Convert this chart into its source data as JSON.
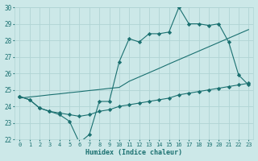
{
  "xlabel": "Humidex (Indice chaleur)",
  "xlim": [
    -0.5,
    23.5
  ],
  "ylim": [
    22,
    30
  ],
  "xticks": [
    0,
    1,
    2,
    3,
    4,
    5,
    6,
    7,
    8,
    9,
    10,
    11,
    12,
    13,
    14,
    15,
    16,
    17,
    18,
    19,
    20,
    21,
    22,
    23
  ],
  "yticks": [
    22,
    23,
    24,
    25,
    26,
    27,
    28,
    29,
    30
  ],
  "background_color": "#cce8e8",
  "grid_color": "#b0d4d4",
  "line_color": "#1a7070",
  "curve1_x": [
    0,
    1,
    2,
    3,
    4,
    5,
    6,
    7,
    8,
    9,
    10,
    11,
    12,
    13,
    14,
    15,
    16,
    17,
    18,
    19,
    20,
    21,
    22,
    23
  ],
  "curve1_y": [
    24.6,
    24.4,
    23.9,
    23.7,
    23.5,
    23.1,
    21.8,
    22.3,
    24.3,
    24.3,
    26.7,
    28.1,
    27.9,
    28.4,
    28.4,
    28.5,
    30.0,
    29.0,
    29.0,
    28.9,
    29.0,
    27.9,
    25.9,
    25.3
  ],
  "curve2_x": [
    0,
    1,
    2,
    3,
    4,
    5,
    6,
    7,
    8,
    9,
    10,
    11,
    12,
    13,
    14,
    15,
    16,
    17,
    18,
    19,
    20,
    21,
    22,
    23
  ],
  "curve2_y": [
    24.5,
    24.57,
    24.63,
    24.7,
    24.76,
    24.83,
    24.89,
    24.96,
    25.02,
    25.09,
    25.15,
    25.52,
    25.78,
    26.04,
    26.3,
    26.57,
    26.83,
    27.09,
    27.35,
    27.61,
    27.87,
    28.13,
    28.39,
    28.65
  ],
  "curve3_x": [
    0,
    1,
    2,
    3,
    4,
    5,
    6,
    7,
    8,
    9,
    10,
    11,
    12,
    13,
    14,
    15,
    16,
    17,
    18,
    19,
    20,
    21,
    22,
    23
  ],
  "curve3_y": [
    24.6,
    24.4,
    23.9,
    23.7,
    23.6,
    23.5,
    23.4,
    23.5,
    23.7,
    23.8,
    24.0,
    24.1,
    24.2,
    24.3,
    24.4,
    24.5,
    24.7,
    24.8,
    24.9,
    25.0,
    25.1,
    25.2,
    25.3,
    25.4
  ]
}
